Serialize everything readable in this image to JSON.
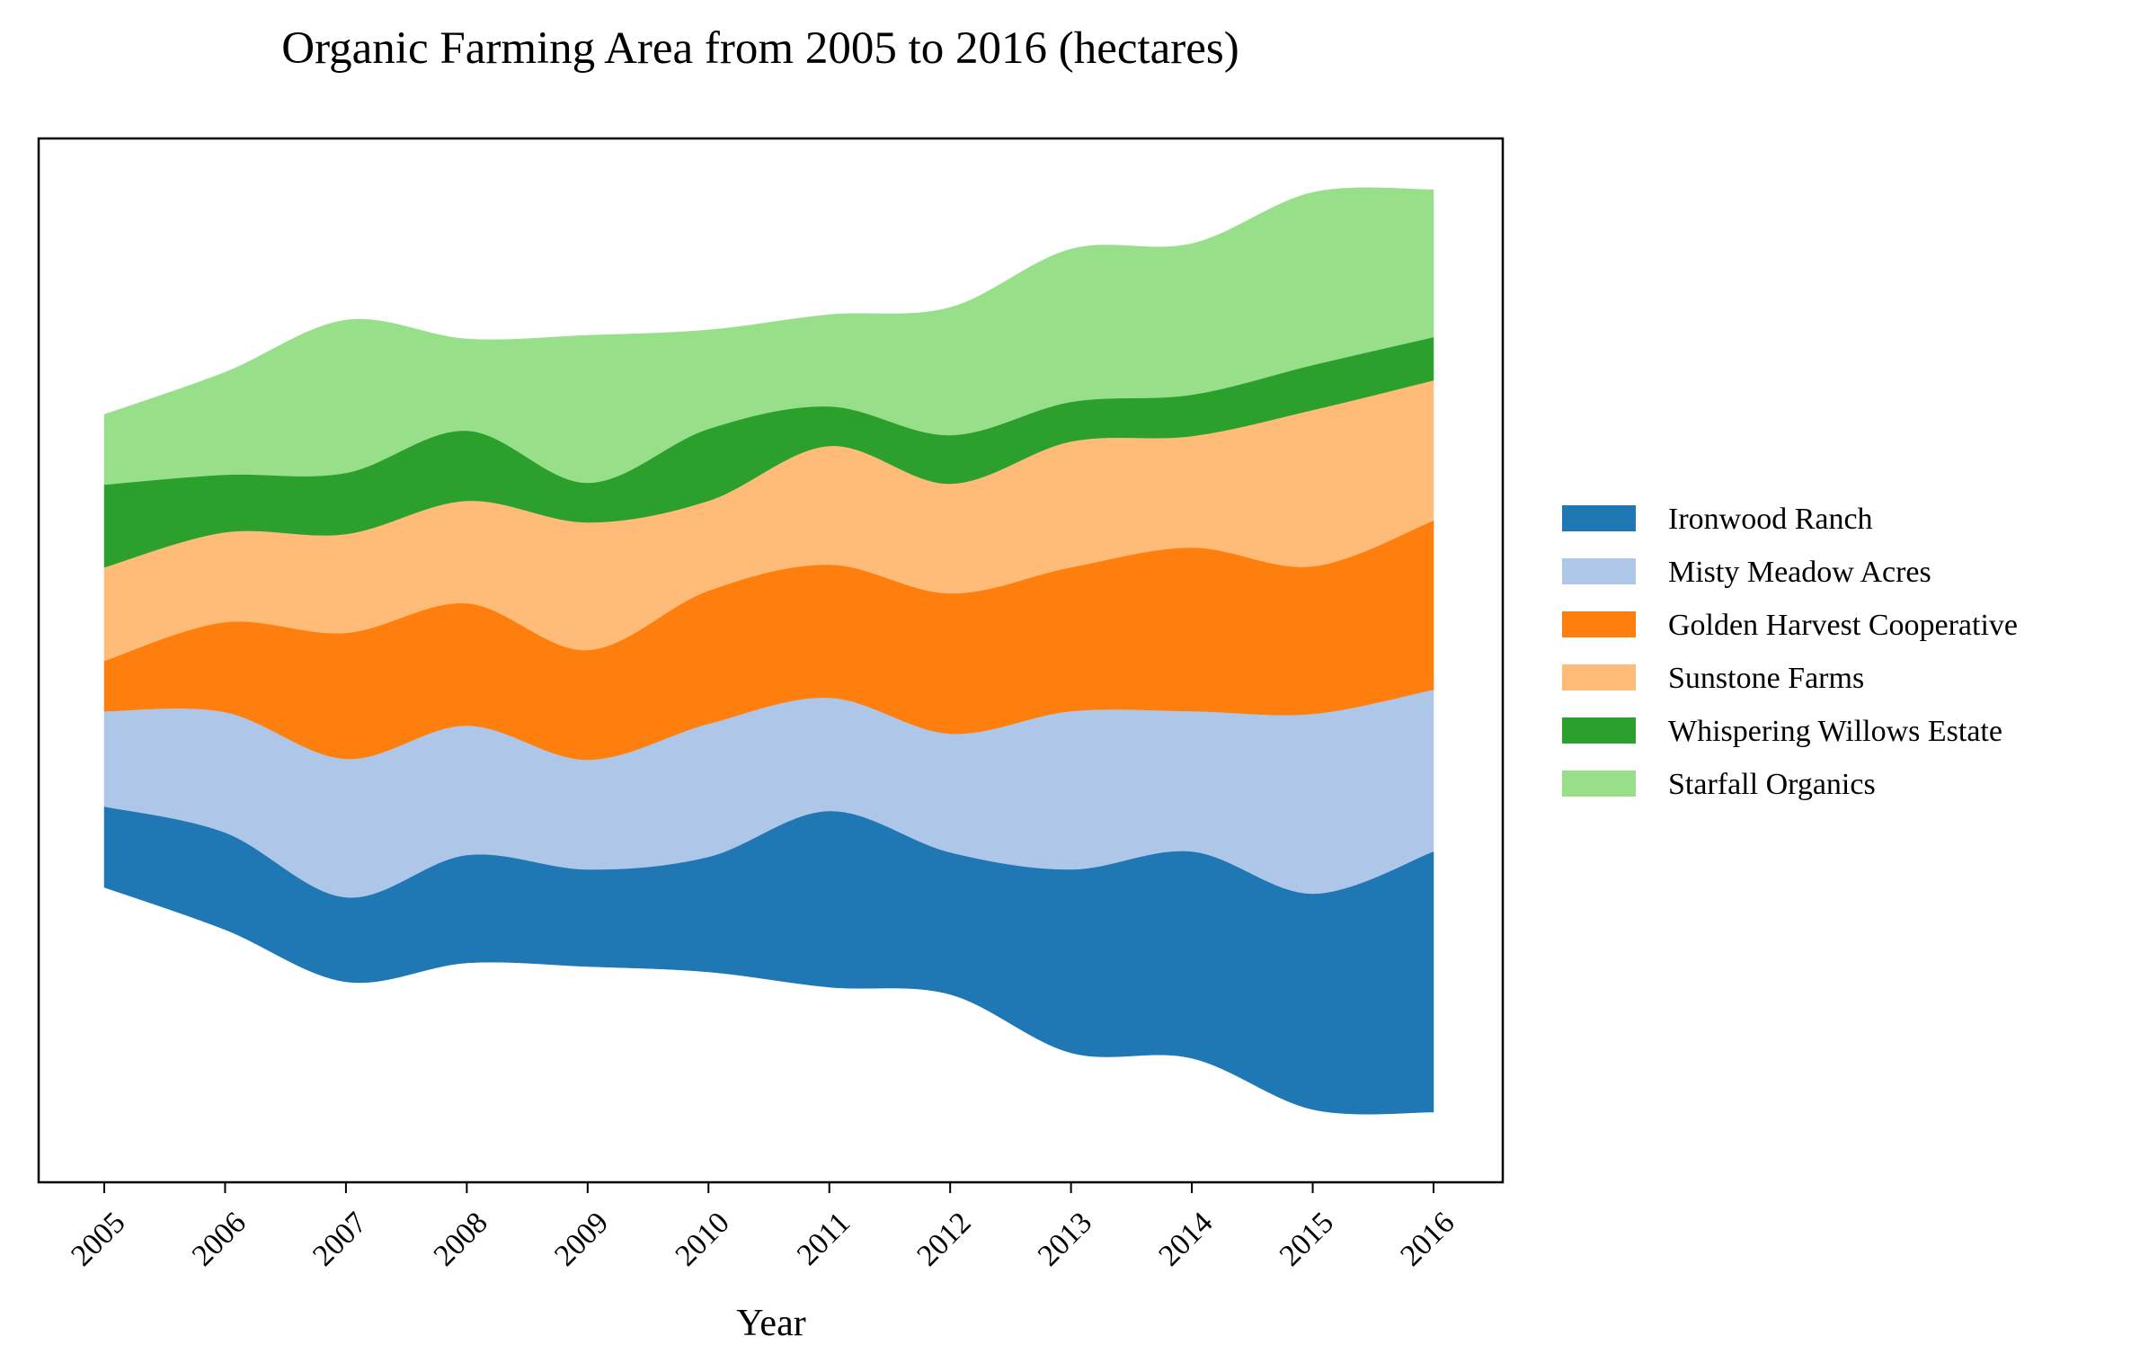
{
  "chart_data": {
    "type": "area",
    "subtype": "streamgraph",
    "title": "Organic Farming Area from 2005 to 2016 (hectares)",
    "xlabel": "Year",
    "ylabel": "",
    "x": [
      "2005",
      "2006",
      "2007",
      "2008",
      "2009",
      "2010",
      "2011",
      "2012",
      "2013",
      "2014",
      "2015",
      "2016"
    ],
    "y_axis_visible": false,
    "grid": false,
    "legend_position": "right",
    "series": [
      {
        "name": "Ironwood Ranch",
        "color": "#1f77b4",
        "values": [
          45,
          54,
          47,
          60,
          54,
          64,
          98,
          79,
          102,
          115,
          120,
          145
        ]
      },
      {
        "name": "Misty Meadow Acres",
        "color": "#aec7e8",
        "values": [
          53,
          67,
          77,
          72,
          61,
          74,
          63,
          66,
          88,
          78,
          100,
          90
        ]
      },
      {
        "name": "Golden Harvest Cooperative",
        "color": "#ff7f0e",
        "values": [
          28,
          50,
          70,
          68,
          61,
          74,
          74,
          78,
          80,
          91,
          82,
          94
        ]
      },
      {
        "name": "Sunstone Farms",
        "color": "#ffbb78",
        "values": [
          52,
          50,
          55,
          57,
          71,
          50,
          66,
          61,
          70,
          62,
          87,
          78
        ]
      },
      {
        "name": "Whispering Willows Estate",
        "color": "#2ca02c",
        "values": [
          46,
          32,
          34,
          39,
          22,
          40,
          22,
          27,
          22,
          23,
          25,
          24
        ]
      },
      {
        "name": "Starfall Organics",
        "color": "#98df8a",
        "values": [
          39,
          57,
          85,
          51,
          82,
          55,
          51,
          71,
          85,
          84,
          96,
          82
        ]
      }
    ]
  }
}
